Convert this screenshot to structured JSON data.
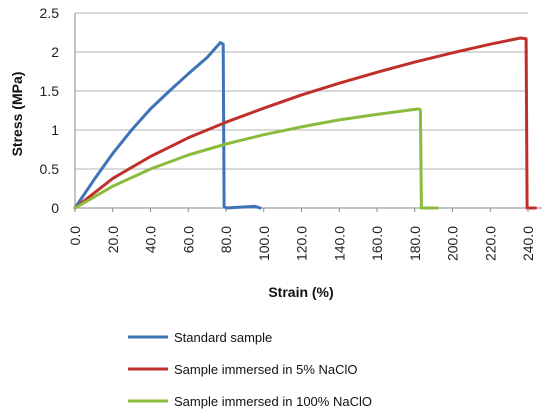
{
  "chart_data": {
    "type": "line",
    "title": "",
    "xlabel": "Strain (%)",
    "ylabel": "Stress (MPa)",
    "xlim": [
      0,
      240
    ],
    "ylim": [
      0,
      2.5
    ],
    "x_ticks": [
      "0.0",
      "20.0",
      "40.0",
      "60.0",
      "80.0",
      "100.0",
      "120.0",
      "140.0",
      "160.0",
      "180.0",
      "200.0",
      "220.0",
      "240.0"
    ],
    "y_ticks": [
      "0",
      "0.5",
      "1",
      "1.5",
      "2",
      "2.5"
    ],
    "grid": "horizontal",
    "legend_position": "bottom",
    "series": [
      {
        "name": "Standard sample",
        "color": "#3f73b8",
        "points": [
          [
            0,
            0
          ],
          [
            10,
            0.36
          ],
          [
            20,
            0.7
          ],
          [
            30,
            1.0
          ],
          [
            40,
            1.27
          ],
          [
            50,
            1.5
          ],
          [
            60,
            1.72
          ],
          [
            70,
            1.93
          ],
          [
            77,
            2.12
          ],
          [
            78.5,
            2.1
          ],
          [
            79,
            0.02
          ],
          [
            80,
            0
          ],
          [
            95,
            0.02
          ],
          [
            97,
            0.01
          ],
          [
            98,
            0
          ]
        ]
      },
      {
        "name": "Sample immersed in 5% NaClO",
        "color": "#c0302b",
        "points": [
          [
            0,
            0
          ],
          [
            20,
            0.38
          ],
          [
            40,
            0.66
          ],
          [
            60,
            0.9
          ],
          [
            80,
            1.1
          ],
          [
            100,
            1.28
          ],
          [
            120,
            1.45
          ],
          [
            140,
            1.6
          ],
          [
            160,
            1.74
          ],
          [
            180,
            1.87
          ],
          [
            200,
            1.99
          ],
          [
            220,
            2.1
          ],
          [
            236,
            2.18
          ],
          [
            239,
            2.17
          ],
          [
            239.5,
            0
          ],
          [
            244,
            0
          ]
        ]
      },
      {
        "name": "Sample immersed in 100% NaClO",
        "color": "#8bbb3c",
        "points": [
          [
            0,
            0
          ],
          [
            20,
            0.28
          ],
          [
            40,
            0.5
          ],
          [
            60,
            0.68
          ],
          [
            80,
            0.82
          ],
          [
            100,
            0.94
          ],
          [
            120,
            1.04
          ],
          [
            140,
            1.13
          ],
          [
            160,
            1.2
          ],
          [
            182,
            1.27
          ],
          [
            183,
            1.26
          ],
          [
            183.5,
            0
          ],
          [
            192,
            0
          ]
        ]
      }
    ]
  }
}
